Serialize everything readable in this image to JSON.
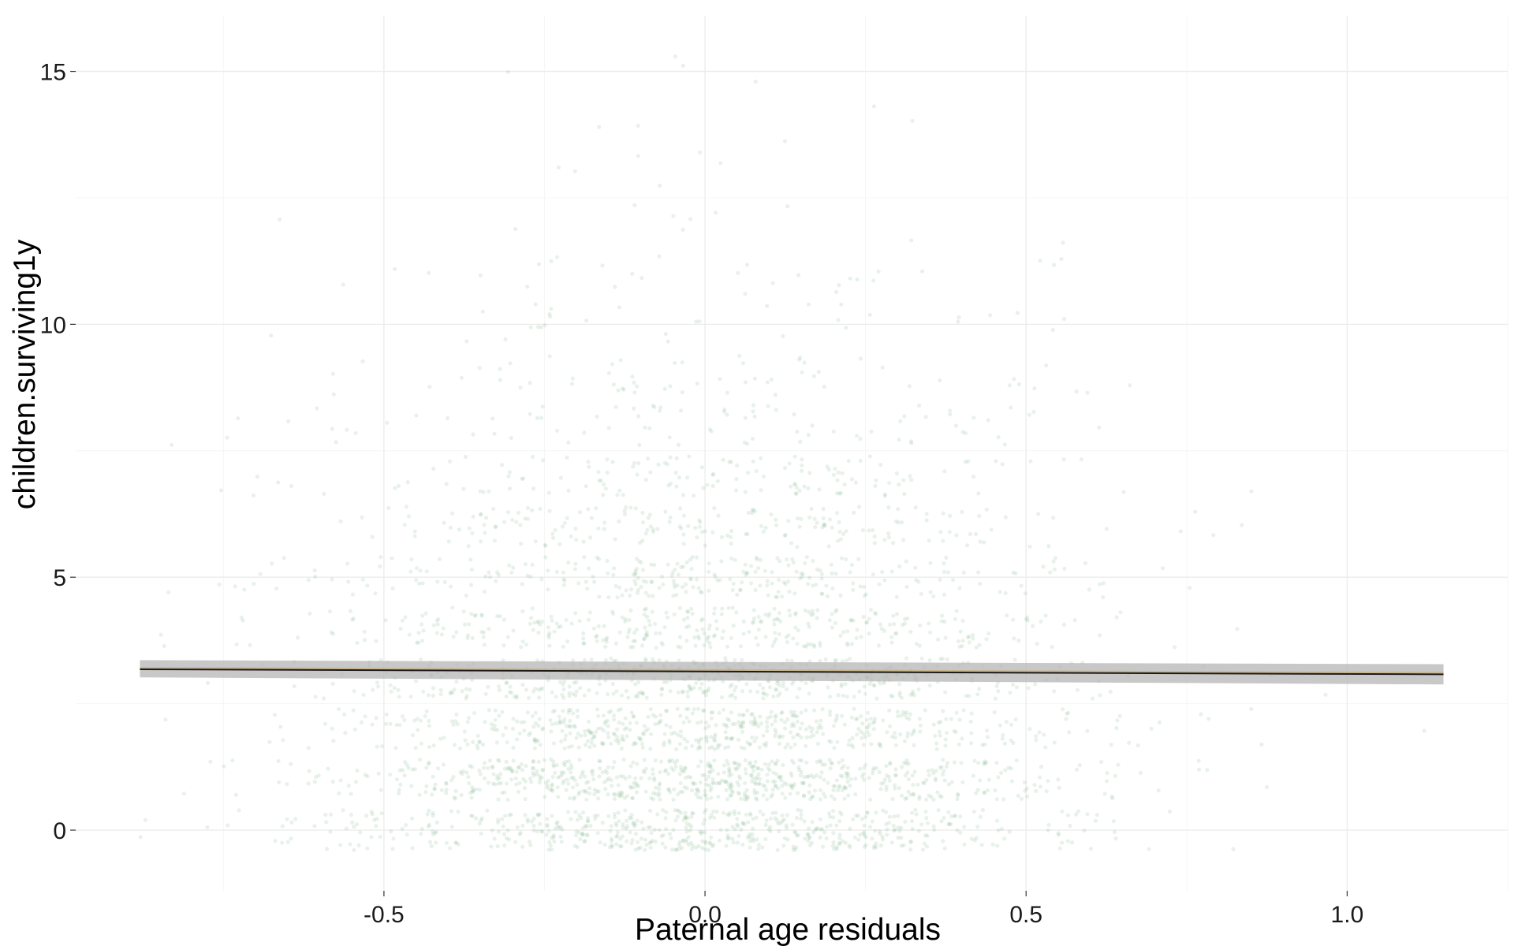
{
  "chart_data": {
    "type": "scatter",
    "title": "",
    "xlabel": "Paternal age residuals",
    "ylabel": "children.surviving1y",
    "xlim": [
      -0.98,
      1.25
    ],
    "ylim": [
      -1.2,
      16.1
    ],
    "x_ticks": [
      -0.5,
      0.0,
      0.5,
      1.0
    ],
    "x_tick_labels": [
      "-0.5",
      "0.0",
      "0.5",
      "1.0"
    ],
    "y_ticks": [
      0,
      5,
      10,
      15
    ],
    "y_tick_labels": [
      "0",
      "5",
      "10",
      "15"
    ],
    "grid": true,
    "legend": "none",
    "point_color": "#4a9a5a",
    "point_alpha": 0.13,
    "point_count_approx": 3500,
    "point_distribution": {
      "x_mean": 0.0,
      "x_sd": 0.3,
      "y_values": "integer counts 0-15 with vertical jitter ±0.4",
      "y_mode": 1
    },
    "regression_line": {
      "x": [
        -0.88,
        1.15
      ],
      "y": [
        3.18,
        3.08
      ],
      "ci_lower": [
        3.02,
        2.88
      ],
      "ci_upper": [
        3.36,
        3.28
      ],
      "line_color": "#1a1a1a",
      "ci_color": "#b5b5b5"
    }
  }
}
